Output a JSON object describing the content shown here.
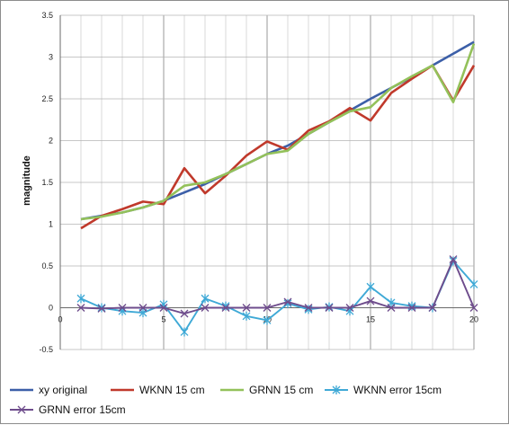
{
  "chart_data": {
    "type": "line",
    "title": "",
    "xlabel": "",
    "ylabel": "magnitude",
    "xlim": [
      0,
      20
    ],
    "ylim": [
      -0.5,
      3.5
    ],
    "x_ticks": [
      0,
      5,
      10,
      15,
      20
    ],
    "y_ticks": [
      "-0.5",
      "0",
      "0.5",
      "1",
      "1.5",
      "2",
      "2.5",
      "3",
      "3.5"
    ],
    "grid": true,
    "legend_position": "bottom",
    "x": [
      1,
      2,
      3,
      4,
      5,
      6,
      7,
      8,
      9,
      10,
      11,
      12,
      13,
      14,
      15,
      16,
      17,
      18,
      19,
      20
    ],
    "series": [
      {
        "name": "xy original",
        "color": "#3c5fa8",
        "marker": "none",
        "values": [
          1.06,
          1.1,
          1.14,
          1.2,
          1.28,
          1.38,
          1.48,
          1.6,
          1.72,
          1.84,
          1.94,
          2.08,
          2.22,
          2.36,
          2.5,
          2.63,
          2.76,
          2.9,
          3.04,
          3.18
        ]
      },
      {
        "name": "WKNN 15 cm",
        "color": "#c0392b",
        "marker": "none",
        "values": [
          0.95,
          1.1,
          1.18,
          1.27,
          1.24,
          1.67,
          1.37,
          1.58,
          1.82,
          1.99,
          1.89,
          2.12,
          2.23,
          2.39,
          2.24,
          2.57,
          2.74,
          2.9,
          2.48,
          2.9
        ]
      },
      {
        "name": "GRNN 15 cm",
        "color": "#93c15a",
        "marker": "none",
        "values": [
          1.06,
          1.09,
          1.14,
          1.2,
          1.28,
          1.46,
          1.5,
          1.6,
          1.72,
          1.84,
          1.88,
          2.08,
          2.22,
          2.35,
          2.4,
          2.63,
          2.77,
          2.9,
          2.46,
          3.16
        ]
      },
      {
        "name": "WKNN error 15cm",
        "color": "#3fa9d6",
        "marker": "asterisk",
        "values": [
          0.11,
          0.0,
          -0.04,
          -0.06,
          0.04,
          -0.29,
          0.11,
          0.02,
          -0.1,
          -0.15,
          0.05,
          -0.02,
          0.01,
          -0.04,
          0.25,
          0.06,
          0.02,
          0.0,
          0.56,
          0.28
        ]
      },
      {
        "name": "GRNN error 15cm",
        "color": "#6e4c8c",
        "marker": "x",
        "values": [
          0.0,
          -0.01,
          0.0,
          0.0,
          0.0,
          -0.07,
          0.0,
          0.0,
          0.0,
          0.0,
          0.07,
          0.0,
          0.0,
          0.0,
          0.08,
          0.0,
          0.0,
          0.0,
          0.58,
          0.0
        ]
      }
    ]
  }
}
